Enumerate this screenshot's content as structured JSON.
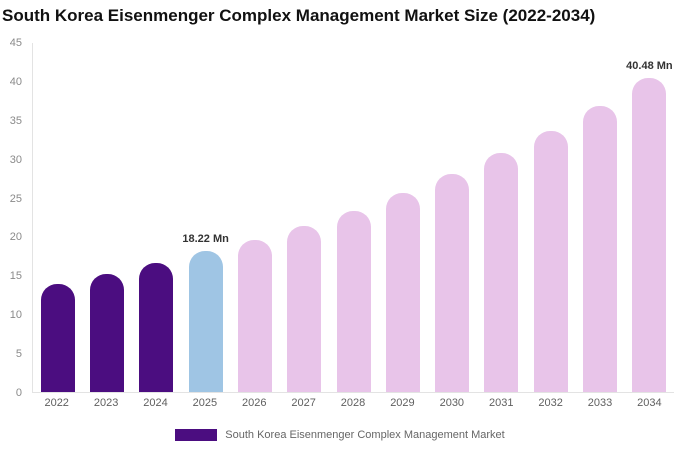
{
  "title": "South Korea Eisenmenger Complex Management Market Size (2022-2034)",
  "legend": {
    "label": "South Korea Eisenmenger Complex Management Market",
    "color": "#4b0d80"
  },
  "colors": {
    "historical_bar": "#4b0d80",
    "current_year_bar": "#9fc5e4",
    "forecast_bar": "#e8c4e9",
    "axis_line": "#e3e3e3",
    "tick_text": "#8a8a8a"
  },
  "chart_data": {
    "type": "bar",
    "title": "South Korea Eisenmenger Complex Management Market Size (2022-2034)",
    "xlabel": "",
    "ylabel": "",
    "ylim": [
      0,
      45
    ],
    "yticks": [
      0,
      5,
      10,
      15,
      20,
      25,
      30,
      35,
      40,
      45
    ],
    "grid": false,
    "legend_position": "bottom",
    "categories": [
      "2022",
      "2023",
      "2024",
      "2025",
      "2026",
      "2027",
      "2028",
      "2029",
      "2030",
      "2031",
      "2032",
      "2033",
      "2034"
    ],
    "values": [
      13.9,
      15.2,
      16.6,
      18.22,
      19.6,
      21.4,
      23.4,
      25.6,
      28.1,
      30.8,
      33.7,
      36.9,
      40.48
    ],
    "unit": "Mn",
    "bar_colors": [
      "#4b0d80",
      "#4b0d80",
      "#4b0d80",
      "#9fc5e4",
      "#e8c4e9",
      "#e8c4e9",
      "#e8c4e9",
      "#e8c4e9",
      "#e8c4e9",
      "#e8c4e9",
      "#e8c4e9",
      "#e8c4e9",
      "#e8c4e9"
    ],
    "annotations": [
      {
        "index": 3,
        "text": "18.22 Mn"
      },
      {
        "index": 12,
        "text": "40.48 Mn"
      }
    ]
  }
}
